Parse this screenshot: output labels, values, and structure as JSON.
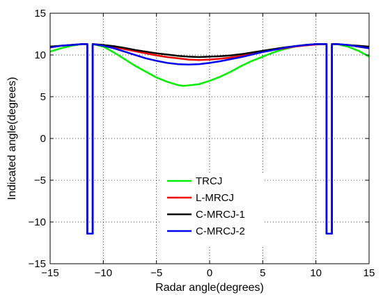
{
  "chart_data": {
    "type": "line",
    "title": "",
    "xlabel": "Radar angle(degrees)",
    "ylabel": "Indicated angle(degrees)",
    "xlim": [
      -15,
      15
    ],
    "ylim": [
      -15,
      15
    ],
    "xticks": [
      -15,
      -10,
      -5,
      0,
      5,
      10,
      15
    ],
    "yticks": [
      -15,
      -10,
      -5,
      0,
      5,
      10,
      15
    ],
    "xtick_labels": [
      "−15",
      "−10",
      "−5",
      "0",
      "5",
      "10",
      "15"
    ],
    "ytick_labels": [
      "−15",
      "−10",
      "−5",
      "0",
      "5",
      "10",
      "15"
    ],
    "grid": true,
    "legend_position": "lower-center",
    "series": [
      {
        "name": "TRCJ",
        "color": "#00ee00",
        "x": [
          -15,
          -14,
          -13,
          -12,
          -11.5,
          -11.5,
          -11,
          -11,
          -10,
          -9,
          -8,
          -7,
          -6,
          -5,
          -4,
          -3,
          -2.5,
          -2,
          -1,
          0,
          1,
          2,
          3,
          4,
          5,
          6,
          7,
          8,
          9,
          10,
          11,
          11,
          11.5,
          11.5,
          12,
          13,
          14,
          15
        ],
        "y": [
          10.4,
          10.8,
          11.1,
          11.3,
          11.3,
          -11.4,
          -11.4,
          11.3,
          11.0,
          10.3,
          9.5,
          8.7,
          8.0,
          7.3,
          6.8,
          6.4,
          6.3,
          6.35,
          6.5,
          6.9,
          7.4,
          8.0,
          8.7,
          9.3,
          9.8,
          10.3,
          10.7,
          11.0,
          11.2,
          11.3,
          11.3,
          -11.4,
          -11.4,
          11.3,
          11.3,
          11.0,
          10.5,
          9.8
        ]
      },
      {
        "name": "L-MRCJ",
        "color": "#ee0000",
        "x": [
          -15,
          -14,
          -13,
          -12,
          -11.5,
          -11.5,
          -11,
          -11,
          -10,
          -9,
          -8,
          -7,
          -6,
          -5,
          -4,
          -3,
          -2,
          -1,
          0,
          1,
          2,
          3,
          4,
          5,
          6,
          7,
          8,
          9,
          10,
          11,
          11,
          11.5,
          11.5,
          12,
          13,
          14,
          15
        ],
        "y": [
          10.9,
          11.1,
          11.2,
          11.3,
          11.3,
          -11.4,
          -11.4,
          11.3,
          11.2,
          10.95,
          10.7,
          10.45,
          10.2,
          9.95,
          9.75,
          9.6,
          9.45,
          9.4,
          9.45,
          9.55,
          9.7,
          9.9,
          10.1,
          10.35,
          10.6,
          10.8,
          11.0,
          11.15,
          11.25,
          11.3,
          -11.4,
          -11.4,
          11.3,
          11.3,
          11.2,
          11.0,
          10.8
        ]
      },
      {
        "name": "C-MRCJ-1",
        "color": "#000000",
        "x": [
          -15,
          -14,
          -13,
          -12,
          -11.5,
          -11.5,
          -11,
          -11,
          -10,
          -9,
          -8,
          -7,
          -6,
          -5,
          -4,
          -3,
          -2,
          -1,
          0,
          1,
          2,
          3,
          4,
          5,
          6,
          7,
          8,
          9,
          10,
          11,
          11,
          11.5,
          11.5,
          12,
          13,
          14,
          15
        ],
        "y": [
          11.0,
          11.1,
          11.2,
          11.3,
          11.3,
          -11.4,
          -11.4,
          11.3,
          11.2,
          11.05,
          10.85,
          10.6,
          10.4,
          10.2,
          10.05,
          9.9,
          9.8,
          9.75,
          9.8,
          9.85,
          9.95,
          10.1,
          10.3,
          10.5,
          10.7,
          10.9,
          11.05,
          11.2,
          11.3,
          11.3,
          -11.4,
          -11.4,
          11.3,
          11.3,
          11.2,
          11.1,
          11.0
        ]
      },
      {
        "name": "C-MRCJ-2",
        "color": "#0000ee",
        "x": [
          -15,
          -14,
          -13,
          -12,
          -11.5,
          -11.5,
          -11,
          -11,
          -10,
          -9,
          -8,
          -7,
          -6,
          -5,
          -4,
          -3,
          -2,
          -1,
          0,
          1,
          2,
          3,
          4,
          5,
          6,
          7,
          8,
          9,
          10,
          11,
          11,
          11.5,
          11.5,
          12,
          13,
          14,
          15
        ],
        "y": [
          10.9,
          11.1,
          11.2,
          11.3,
          11.3,
          -11.4,
          -11.4,
          11.3,
          11.1,
          10.8,
          10.4,
          10.0,
          9.6,
          9.3,
          9.05,
          8.9,
          8.85,
          8.9,
          9.05,
          9.25,
          9.5,
          9.75,
          10.05,
          10.35,
          10.6,
          10.85,
          11.05,
          11.2,
          11.3,
          11.3,
          -11.4,
          -11.4,
          11.3,
          11.3,
          11.2,
          11.0,
          10.8
        ]
      }
    ]
  }
}
